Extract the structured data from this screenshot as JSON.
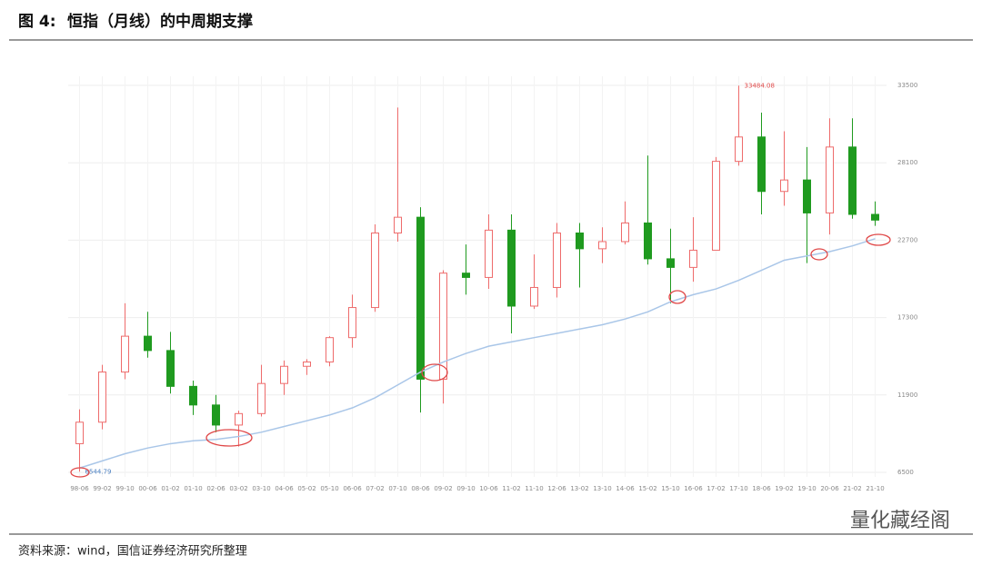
{
  "header": {
    "figure": "图 4:",
    "title": "恒指（月线）的中周期支撑"
  },
  "chart_data": {
    "type": "candlestick",
    "categories": [
      "98-06",
      "99-02",
      "99-10",
      "00-06",
      "01-02",
      "01-10",
      "02-06",
      "03-02",
      "03-10",
      "04-06",
      "05-02",
      "05-10",
      "06-06",
      "07-02",
      "07-10",
      "08-06",
      "09-02",
      "09-10",
      "10-06",
      "11-02",
      "11-10",
      "12-06",
      "13-02",
      "13-10",
      "14-06",
      "15-02",
      "15-10",
      "16-06",
      "17-02",
      "17-10",
      "18-06",
      "19-02",
      "19-10",
      "20-06",
      "21-02",
      "21-10"
    ],
    "open": [
      8500,
      10000,
      13500,
      16000,
      15000,
      12500,
      11200,
      9800,
      10600,
      12700,
      13900,
      14200,
      15900,
      18000,
      23200,
      24300,
      13000,
      20400,
      20100,
      23400,
      18100,
      19400,
      23200,
      22100,
      22600,
      23900,
      21400,
      20800,
      22000,
      28200,
      29900,
      26100,
      26900,
      24600,
      29200,
      24500
    ],
    "high": [
      10900,
      14000,
      18300,
      17700,
      16300,
      12900,
      11900,
      10800,
      14000,
      14300,
      14400,
      16000,
      18900,
      23800,
      31958,
      25000,
      20600,
      22400,
      24500,
      24500,
      21700,
      23900,
      23900,
      23600,
      25400,
      28600,
      23500,
      24300,
      28500,
      33484.08,
      31600,
      30300,
      29200,
      31200,
      31200,
      25400
    ],
    "low": [
      6544.79,
      9500,
      13000,
      14500,
      12000,
      10500,
      9300,
      8300,
      10400,
      11900,
      13300,
      13900,
      15200,
      17700,
      22600,
      10676,
      11300,
      18900,
      19300,
      16200,
      17900,
      18700,
      19400,
      21100,
      22400,
      21000,
      18300,
      19800,
      22000,
      27900,
      24500,
      25100,
      21100,
      23100,
      24200,
      23700
    ],
    "close": [
      10000,
      13500,
      16000,
      15000,
      12500,
      11200,
      9800,
      10600,
      12700,
      13900,
      14200,
      15900,
      18000,
      23200,
      24300,
      13000,
      20400,
      20100,
      23400,
      18100,
      19400,
      23200,
      22100,
      22600,
      23900,
      21400,
      20800,
      22000,
      28200,
      29900,
      26100,
      26900,
      24600,
      29200,
      24500,
      24100
    ],
    "up_color": "#ee6b6b",
    "down_color": "#1f9a1f",
    "ma": {
      "color": "#a9c6e8",
      "values": [
        6800,
        7300,
        7800,
        8200,
        8500,
        8700,
        8800,
        9000,
        9300,
        9700,
        10100,
        10500,
        11000,
        11700,
        12600,
        13500,
        14200,
        14800,
        15300,
        15600,
        15900,
        16200,
        16500,
        16800,
        17200,
        17700,
        18400,
        18900,
        19300,
        19900,
        20600,
        21300,
        21600,
        21900,
        22300,
        22800
      ]
    },
    "ylim": [
      6500,
      33500
    ],
    "yticks": [
      6500,
      11900,
      17300,
      22700,
      28100,
      33500
    ],
    "grid": true
  },
  "footer": {
    "source": "资料来源：wind，国信证券经济研究所整理",
    "watermark": "量化藏经阁"
  }
}
